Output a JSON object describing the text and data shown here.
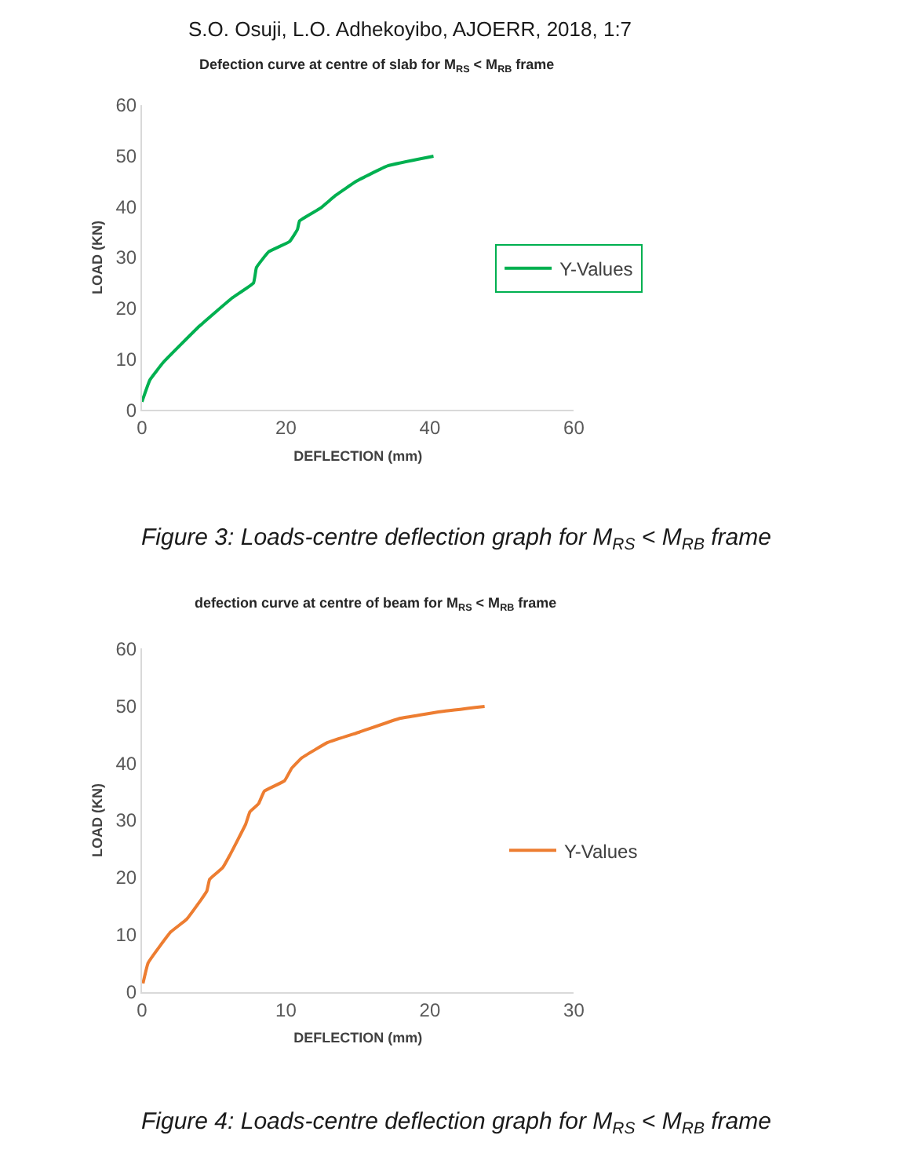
{
  "chart_data": [
    {
      "type": "line",
      "title": "Defection curve at centre of slab for M$_{RS}$ < M$_{RB}$ frame",
      "xlabel": "DEFLECTION (mm)",
      "ylabel": "LOAD (KN)",
      "annotations": [
        "S.O. Osuji, L.O. Adhekoyibo, AJOERR, 2018, 1:7",
        "Figure 3: Loads-centre deflection graph for M$_{RS}$ < M$_{RB}$ frame"
      ],
      "series": [
        {
          "name": "Y-Values",
          "color": "#00b050",
          "x": [
            0,
            1.1,
            3,
            8,
            12.5,
            15.5,
            15.9,
            17.6,
            20.5,
            21.6,
            21.9,
            24.8,
            26.9,
            29.8,
            34.1,
            40.5
          ],
          "values": [
            1.6,
            5.9,
            9.4,
            16.5,
            22,
            25,
            28,
            31.1,
            33.1,
            35.5,
            37.2,
            39.7,
            42.2,
            45,
            48,
            49.9
          ]
        }
      ],
      "xlim": [
        0,
        60
      ],
      "xticks": [
        0,
        20,
        40,
        60
      ],
      "ylim": [
        0,
        60
      ],
      "yticks": [
        0,
        10,
        20,
        30,
        40,
        50,
        60
      ],
      "grid": false,
      "legend": "right",
      "marker": "none",
      "line_style": "solid"
    },
    {
      "type": "line",
      "title": "defection curve at centre of beam for M$_{RS}$ < M$_{RB}$ frame",
      "xlabel": "DEFLECTION (mm)",
      "ylabel": "LOAD (KN)",
      "annotations": [
        "Figure 4: Loads-centre deflection graph for M$_{RS}$ < M$_{RB}$ frame"
      ],
      "series": [
        {
          "name": "Y-Values",
          "color": "#ed7d31",
          "x": [
            0.07,
            0.43,
            2.0,
            3.1,
            4.5,
            4.7,
            5.6,
            6.1,
            7.2,
            7.5,
            8.1,
            8.5,
            9.9,
            10.4,
            11.1,
            12.9,
            15.1,
            17.9,
            20.8,
            23.8
          ],
          "values": [
            1.5,
            5.1,
            10.5,
            12.7,
            17.6,
            19.7,
            21.7,
            23.9,
            29.3,
            31.5,
            32.9,
            35.1,
            36.9,
            39.1,
            40.9,
            43.6,
            45.4,
            47.8,
            49,
            49.9
          ]
        }
      ],
      "xlim": [
        0,
        30
      ],
      "xticks": [
        0,
        10,
        20,
        30
      ],
      "ylim": [
        0,
        60
      ],
      "yticks": [
        0,
        10,
        20,
        30,
        40,
        50,
        60
      ],
      "grid": false,
      "legend": "right",
      "marker": "none",
      "line_style": "solid"
    }
  ]
}
